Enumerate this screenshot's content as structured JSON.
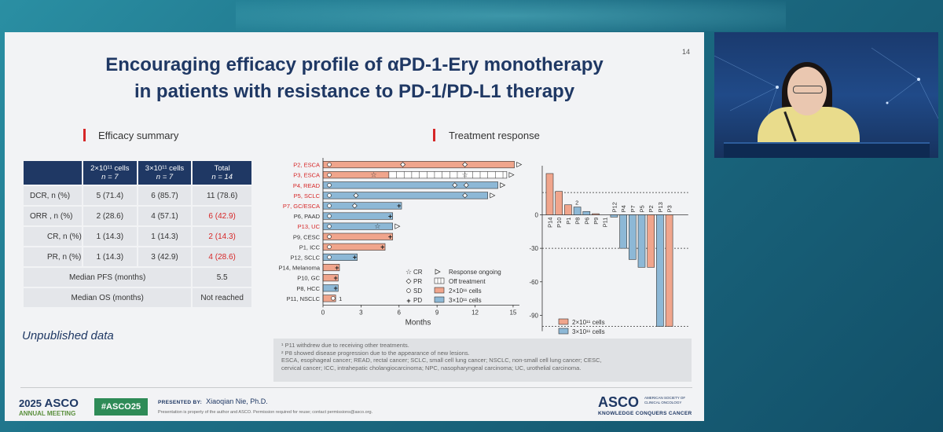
{
  "slide": {
    "number": "14",
    "title_line1": "Encouraging efficacy profile of αPD-1-Ery monotherapy",
    "title_line2": "in patients with resistance to PD-1/PD-L1 therapy",
    "left_heading": "Efficacy summary",
    "right_heading": "Treatment response",
    "unpublished": "Unpublished data"
  },
  "table": {
    "headers": [
      {
        "a": "2×10¹¹ cells",
        "b": "n = 7"
      },
      {
        "a": "3×10¹¹ cells",
        "b": "n = 7"
      },
      {
        "a": "Total",
        "b": "n = 14"
      }
    ],
    "rows": [
      {
        "label": "DCR, n (%)",
        "c1": "5 (71.4)",
        "c2": "6 (85.7)",
        "c3": "11 (78.6)"
      },
      {
        "label": "ORR , n (%)",
        "c1": "2 (28.6)",
        "c2": "4 (57.1)",
        "c3": "6 (42.9)"
      },
      {
        "label": "CR, n (%)",
        "c1": "1 (14.3)",
        "c2": "1 (14.3)",
        "c3": "2 (14.3)"
      },
      {
        "label": "PR, n (%)",
        "c1": "1 (14.3)",
        "c2": "3 (42.9)",
        "c3": "4 (28.6)"
      }
    ],
    "median_pfs_label": "Median PFS (months)",
    "median_pfs_value": "5.5",
    "median_os_label": "Median OS (months)",
    "median_os_value": "Not reached"
  },
  "chart_data": [
    {
      "type": "bar",
      "orientation": "horizontal",
      "xlabel": "Months",
      "xlim": [
        0,
        15.5
      ],
      "xticks": [
        0,
        3,
        6,
        9,
        12,
        15
      ],
      "patients": [
        {
          "label": "P2, ESCA",
          "red": true,
          "months": 15.1,
          "cohort": "2e11",
          "ongoing": true,
          "off": 0,
          "markers": [
            {
              "t": 0.5,
              "m": "SD"
            },
            {
              "t": 6.3,
              "m": "PR"
            },
            {
              "t": 11.2,
              "m": "PR"
            }
          ]
        },
        {
          "label": "P3, ESCA",
          "red": true,
          "months": 14.5,
          "cohort": "2e11",
          "ongoing": true,
          "off": 5.2,
          "markers": [
            {
              "t": 0.5,
              "m": "SD"
            },
            {
              "t": 4.0,
              "m": "CR"
            },
            {
              "t": 11.2,
              "m": "CR"
            }
          ]
        },
        {
          "label": "P4, READ",
          "red": true,
          "months": 13.8,
          "cohort": "3e11",
          "ongoing": true,
          "off": 0,
          "markers": [
            {
              "t": 0.5,
              "m": "SD"
            },
            {
              "t": 10.4,
              "m": "PR"
            },
            {
              "t": 11.3,
              "m": "PR"
            }
          ]
        },
        {
          "label": "P5, SCLC",
          "red": true,
          "months": 13.0,
          "cohort": "3e11",
          "ongoing": true,
          "off": 0,
          "markers": [
            {
              "t": 0.5,
              "m": "SD"
            },
            {
              "t": 2.6,
              "m": "PR"
            },
            {
              "t": 11.2,
              "m": "PR"
            }
          ]
        },
        {
          "label": "P7, GC/ESCA",
          "red": true,
          "months": 6.2,
          "cohort": "3e11",
          "ongoing": false,
          "off": 0,
          "markers": [
            {
              "t": 0.5,
              "m": "SD"
            },
            {
              "t": 2.5,
              "m": "PR"
            },
            {
              "t": 6.0,
              "m": "PD"
            }
          ]
        },
        {
          "label": "P6, PAAD",
          "red": false,
          "months": 5.5,
          "cohort": "3e11",
          "ongoing": false,
          "off": 0,
          "markers": [
            {
              "t": 0.5,
              "m": "SD"
            },
            {
              "t": 5.3,
              "m": "PD"
            }
          ]
        },
        {
          "label": "P13, UC",
          "red": true,
          "months": 5.5,
          "cohort": "3e11",
          "ongoing": true,
          "off": 0,
          "markers": [
            {
              "t": 0.5,
              "m": "SD"
            },
            {
              "t": 4.3,
              "m": "CR"
            }
          ]
        },
        {
          "label": "P9, CESC",
          "red": false,
          "months": 5.5,
          "cohort": "2e11",
          "ongoing": false,
          "off": 0,
          "markers": [
            {
              "t": 0.5,
              "m": "SD"
            },
            {
              "t": 5.3,
              "m": "PD"
            }
          ]
        },
        {
          "label": "P1, ICC",
          "red": false,
          "months": 4.9,
          "cohort": "2e11",
          "ongoing": false,
          "off": 0,
          "markers": [
            {
              "t": 0.5,
              "m": "SD"
            },
            {
              "t": 4.7,
              "m": "PD"
            }
          ]
        },
        {
          "label": "P12, SCLC",
          "red": false,
          "months": 2.7,
          "cohort": "3e11",
          "ongoing": false,
          "off": 0,
          "markers": [
            {
              "t": 0.5,
              "m": "SD"
            },
            {
              "t": 2.5,
              "m": "PD"
            }
          ]
        },
        {
          "label": "P14, Melanoma",
          "red": false,
          "months": 1.3,
          "cohort": "2e11",
          "ongoing": false,
          "off": 0,
          "markers": [
            {
              "t": 1.1,
              "m": "PD"
            }
          ]
        },
        {
          "label": "P10, GC",
          "red": false,
          "months": 1.2,
          "cohort": "2e11",
          "ongoing": false,
          "off": 0,
          "markers": [
            {
              "t": 1.0,
              "m": "PD"
            }
          ]
        },
        {
          "label": "P8, HCC",
          "red": false,
          "months": 1.2,
          "cohort": "3e11",
          "ongoing": false,
          "off": 0,
          "markers": [
            {
              "t": 1.0,
              "m": "PD"
            }
          ]
        },
        {
          "label": "P11, NSCLC",
          "red": false,
          "months": 1.0,
          "cohort": "2e11",
          "ongoing": false,
          "off": 0,
          "markers": [
            {
              "t": 0.8,
              "m": "SD"
            }
          ],
          "note": "1"
        }
      ],
      "legend": {
        "cr": "CR",
        "pr": "PR",
        "sd": "SD",
        "pd": "PD",
        "ongoing": "Response ongoing",
        "off": "Off treatment",
        "c2": "2×10¹¹ cells",
        "c3": "3×10¹¹ cells"
      }
    },
    {
      "type": "bar",
      "orientation": "vertical",
      "ylim": [
        -100,
        40
      ],
      "yticks": [
        0,
        -30,
        -60,
        -90
      ],
      "reference_lines": [
        20,
        -30,
        -100
      ],
      "bars": [
        {
          "label": "P14",
          "value": 37,
          "cohort": "2e11"
        },
        {
          "label": "P10",
          "value": 21,
          "cohort": "2e11"
        },
        {
          "label": "P1",
          "value": 9,
          "cohort": "2e11"
        },
        {
          "label": "P8",
          "value": 7,
          "cohort": "3e11",
          "note": "2"
        },
        {
          "label": "P6",
          "value": 3,
          "cohort": "3e11"
        },
        {
          "label": "P9",
          "value": 1,
          "cohort": "2e11"
        },
        {
          "label": "P11",
          "value": 0,
          "cohort": "2e11"
        },
        {
          "label": "P12",
          "value": -2,
          "cohort": "3e11"
        },
        {
          "label": "P4",
          "value": -30,
          "cohort": "3e11"
        },
        {
          "label": "P7",
          "value": -40,
          "cohort": "3e11"
        },
        {
          "label": "P5",
          "value": -47,
          "cohort": "3e11"
        },
        {
          "label": "P2",
          "value": -47,
          "cohort": "2e11"
        },
        {
          "label": "P13",
          "value": -100,
          "cohort": "3e11"
        },
        {
          "label": "P3",
          "value": -100,
          "cohort": "2e11"
        }
      ],
      "legend": {
        "c2": "2×10¹¹ cells",
        "c3": "3×10¹¹ cells"
      }
    }
  ],
  "colors": {
    "c2": "#f0a58c",
    "c3": "#8db8d6",
    "navy": "#1f3864",
    "red": "#d62728"
  },
  "footnotes": [
    "¹ P11 withdrew due to receiving other treatments.",
    "² P8 showed disease progression due to the appearance of new lesions.",
    "ESCA, esophageal cancer; READ, rectal cancer; SCLC, small cell lung cancer; NSCLC, non-small cell lung cancer; CESC,",
    "cervical cancer; ICC, intrahepatic cholangiocarcinoma; NPC, nasopharyngeal carcinoma; UC, urothelial carcinoma."
  ],
  "footer": {
    "year": "2025",
    "asco": "ASCO",
    "meeting": "ANNUAL MEETING",
    "hashtag": "#ASCO25",
    "presented_by": "PRESENTED BY:",
    "presenter": "Xiaoqian Nie, Ph.D.",
    "disclaimer": "Presentation is property of the author and ASCO. Permission required for reuse; contact permissions@asco.org.",
    "logo": "ASCO",
    "logo_small": "AMERICAN SOCIETY OF CLINICAL ONCOLOGY",
    "tagline": "KNOWLEDGE CONQUERS CANCER"
  }
}
